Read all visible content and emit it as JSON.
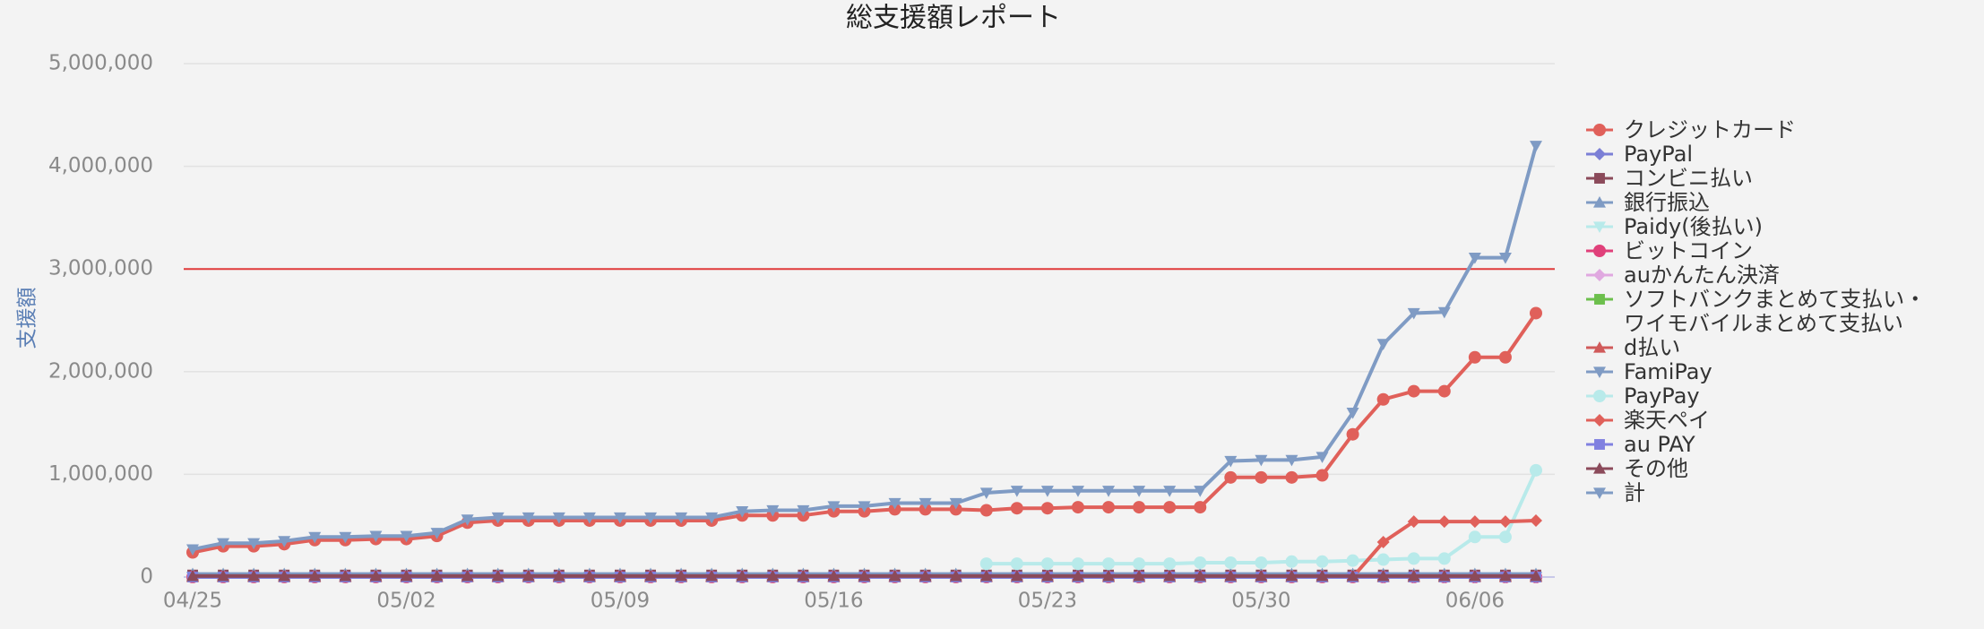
{
  "chart_data": {
    "type": "line",
    "title": "総支援額レポート",
    "y_label": "支援額",
    "categories": [
      "04/25",
      null,
      null,
      null,
      null,
      null,
      null,
      "05/02",
      null,
      null,
      null,
      null,
      null,
      null,
      "05/09",
      null,
      null,
      null,
      null,
      null,
      null,
      "05/16",
      null,
      null,
      null,
      null,
      null,
      null,
      "05/23",
      null,
      null,
      null,
      null,
      null,
      null,
      "05/30",
      null,
      null,
      null,
      null,
      null,
      null,
      "06/06",
      null,
      null
    ],
    "ylim": [
      0,
      5000000
    ],
    "yticks": [
      {
        "value": 0,
        "label": "0"
      },
      {
        "value": 1000000,
        "label": "1,000,000"
      },
      {
        "value": 2000000,
        "label": "2,000,000"
      },
      {
        "value": 3000000,
        "label": "3,000,000"
      },
      {
        "value": 4000000,
        "label": "4,000,000"
      },
      {
        "value": 5000000,
        "label": "5,000,000"
      }
    ],
    "grid": true,
    "target": 3000000,
    "target_color": "#e03a3a",
    "legend": "right",
    "series": [
      {
        "name": "クレジットカード",
        "color": "#e0605a",
        "marker": "circle",
        "values": [
          240000,
          300000,
          300000,
          320000,
          360000,
          360000,
          370000,
          370000,
          400000,
          530000,
          550000,
          550000,
          550000,
          550000,
          550000,
          550000,
          550000,
          550000,
          600000,
          600000,
          600000,
          640000,
          640000,
          660000,
          660000,
          660000,
          650000,
          670000,
          670000,
          680000,
          680000,
          680000,
          680000,
          680000,
          970000,
          970000,
          970000,
          990000,
          1390000,
          1730000,
          1810000,
          1810000,
          2140000,
          2140000,
          2570000
        ]
      },
      {
        "name": "PayPal",
        "color": "#7b7fd6",
        "marker": "diamond",
        "values": [
          0,
          0,
          0,
          0,
          0,
          0,
          0,
          0,
          0,
          0,
          0,
          0,
          0,
          0,
          0,
          0,
          0,
          0,
          0,
          0,
          0,
          0,
          0,
          0,
          0,
          0,
          0,
          0,
          0,
          0,
          0,
          0,
          0,
          0,
          0,
          0,
          0,
          0,
          0,
          0,
          0,
          0,
          0,
          0,
          0
        ]
      },
      {
        "name": "コンビニ払い",
        "color": "#8b4a5a",
        "marker": "square",
        "values": [
          20000,
          20000,
          20000,
          20000,
          20000,
          20000,
          20000,
          20000,
          20000,
          20000,
          20000,
          20000,
          20000,
          20000,
          20000,
          20000,
          20000,
          20000,
          20000,
          20000,
          20000,
          20000,
          20000,
          20000,
          20000,
          20000,
          20000,
          20000,
          20000,
          20000,
          20000,
          20000,
          20000,
          20000,
          20000,
          20000,
          20000,
          20000,
          20000,
          20000,
          20000,
          20000,
          20000,
          20000,
          20000
        ]
      },
      {
        "name": "銀行振込",
        "color": "#7f9bc4",
        "marker": "triangle",
        "values": [
          30000,
          30000,
          30000,
          30000,
          30000,
          30000,
          30000,
          30000,
          30000,
          30000,
          30000,
          30000,
          30000,
          30000,
          30000,
          30000,
          30000,
          30000,
          30000,
          30000,
          30000,
          30000,
          30000,
          30000,
          30000,
          30000,
          30000,
          30000,
          30000,
          30000,
          30000,
          30000,
          30000,
          30000,
          30000,
          30000,
          30000,
          30000,
          30000,
          30000,
          30000,
          30000,
          30000,
          30000,
          30000
        ]
      },
      {
        "name": "Paidy(後払い)",
        "color": "#b8eaea",
        "marker": "triangle-down",
        "values": [
          0,
          0,
          0,
          0,
          0,
          0,
          0,
          0,
          0,
          0,
          0,
          0,
          0,
          0,
          0,
          0,
          0,
          0,
          0,
          0,
          0,
          0,
          0,
          0,
          0,
          0,
          0,
          0,
          0,
          0,
          0,
          0,
          0,
          0,
          0,
          0,
          0,
          0,
          0,
          0,
          0,
          0,
          0,
          0,
          0
        ]
      },
      {
        "name": "ビットコイン",
        "color": "#e0407a",
        "marker": "circle",
        "values": [
          0,
          0,
          0,
          0,
          0,
          0,
          0,
          0,
          0,
          0,
          0,
          0,
          0,
          0,
          0,
          0,
          0,
          0,
          0,
          0,
          0,
          0,
          0,
          0,
          0,
          0,
          0,
          0,
          0,
          0,
          0,
          0,
          0,
          0,
          0,
          0,
          0,
          0,
          0,
          0,
          0,
          0,
          0,
          0,
          0
        ]
      },
      {
        "name": "auかんたん決済",
        "color": "#e0a8e0",
        "marker": "diamond",
        "values": [
          0,
          0,
          0,
          0,
          0,
          0,
          0,
          0,
          0,
          0,
          0,
          0,
          0,
          0,
          0,
          0,
          0,
          0,
          0,
          0,
          0,
          0,
          0,
          0,
          0,
          0,
          0,
          0,
          0,
          0,
          0,
          0,
          0,
          0,
          0,
          0,
          0,
          0,
          0,
          0,
          0,
          0,
          0,
          0,
          0
        ]
      },
      {
        "name": "ソフトバンクまとめて支払い・ワイモバイルまとめて支払い",
        "color": "#6cbf4c",
        "marker": "square",
        "values": [
          0,
          0,
          0,
          0,
          0,
          0,
          0,
          0,
          0,
          0,
          0,
          0,
          0,
          0,
          0,
          0,
          0,
          0,
          0,
          0,
          0,
          0,
          0,
          0,
          0,
          0,
          0,
          0,
          0,
          0,
          0,
          0,
          0,
          0,
          0,
          0,
          0,
          0,
          0,
          0,
          0,
          0,
          0,
          0,
          0
        ]
      },
      {
        "name": "d払い",
        "color": "#d05a5a",
        "marker": "triangle",
        "values": [
          0,
          0,
          0,
          0,
          0,
          0,
          0,
          0,
          0,
          0,
          0,
          0,
          0,
          0,
          0,
          0,
          0,
          0,
          0,
          0,
          0,
          0,
          0,
          0,
          0,
          0,
          0,
          0,
          0,
          0,
          0,
          0,
          0,
          0,
          0,
          0,
          0,
          0,
          0,
          0,
          0,
          0,
          0,
          0,
          0
        ]
      },
      {
        "name": "FamiPay",
        "color": "#7f9bc4",
        "marker": "triangle-down",
        "values": [
          0,
          0,
          0,
          0,
          0,
          0,
          0,
          0,
          0,
          0,
          0,
          0,
          0,
          0,
          0,
          0,
          0,
          0,
          0,
          0,
          0,
          0,
          0,
          0,
          0,
          0,
          0,
          0,
          0,
          0,
          0,
          0,
          0,
          0,
          0,
          0,
          0,
          0,
          0,
          0,
          0,
          0,
          0,
          0,
          0
        ]
      },
      {
        "name": "PayPay",
        "color": "#b8eaea",
        "marker": "circle",
        "values": [
          null,
          null,
          null,
          null,
          null,
          null,
          null,
          null,
          null,
          null,
          null,
          null,
          null,
          null,
          null,
          null,
          null,
          null,
          null,
          null,
          null,
          null,
          null,
          null,
          null,
          null,
          130000,
          130000,
          130000,
          130000,
          130000,
          130000,
          130000,
          140000,
          140000,
          140000,
          150000,
          150000,
          160000,
          170000,
          180000,
          180000,
          390000,
          390000,
          1040000
        ]
      },
      {
        "name": "楽天ペイ",
        "color": "#e0605a",
        "marker": "diamond",
        "values": [
          0,
          0,
          0,
          0,
          0,
          0,
          0,
          0,
          0,
          0,
          0,
          0,
          0,
          0,
          0,
          0,
          0,
          0,
          0,
          0,
          0,
          0,
          0,
          0,
          0,
          0,
          0,
          0,
          0,
          0,
          0,
          0,
          0,
          0,
          0,
          0,
          0,
          0,
          0,
          340000,
          540000,
          540000,
          540000,
          540000,
          550000
        ]
      },
      {
        "name": "au PAY",
        "color": "#8080e0",
        "marker": "square",
        "values": [
          0,
          0,
          0,
          0,
          0,
          0,
          0,
          0,
          0,
          0,
          0,
          0,
          0,
          0,
          0,
          0,
          0,
          0,
          0,
          0,
          0,
          0,
          0,
          0,
          0,
          0,
          0,
          0,
          0,
          0,
          0,
          0,
          0,
          0,
          0,
          0,
          0,
          0,
          0,
          0,
          0,
          0,
          0,
          0,
          0
        ]
      },
      {
        "name": "その他",
        "color": "#8b4a5a",
        "marker": "triangle",
        "values": [
          10000,
          10000,
          10000,
          10000,
          10000,
          10000,
          10000,
          10000,
          10000,
          10000,
          10000,
          10000,
          10000,
          10000,
          10000,
          10000,
          10000,
          10000,
          10000,
          10000,
          10000,
          10000,
          10000,
          10000,
          10000,
          10000,
          10000,
          10000,
          10000,
          10000,
          10000,
          10000,
          10000,
          10000,
          10000,
          10000,
          10000,
          10000,
          10000,
          10000,
          10000,
          10000,
          10000,
          10000,
          10000
        ]
      },
      {
        "name": "計",
        "color": "#7f9bc4",
        "marker": "triangle-down",
        "values": [
          270000,
          330000,
          330000,
          350000,
          390000,
          390000,
          400000,
          400000,
          430000,
          560000,
          580000,
          580000,
          580000,
          580000,
          580000,
          580000,
          580000,
          580000,
          640000,
          650000,
          650000,
          690000,
          690000,
          720000,
          720000,
          720000,
          820000,
          840000,
          840000,
          840000,
          840000,
          840000,
          840000,
          840000,
          1130000,
          1140000,
          1140000,
          1170000,
          1600000,
          2270000,
          2570000,
          2580000,
          3110000,
          3110000,
          4200000
        ]
      }
    ]
  }
}
